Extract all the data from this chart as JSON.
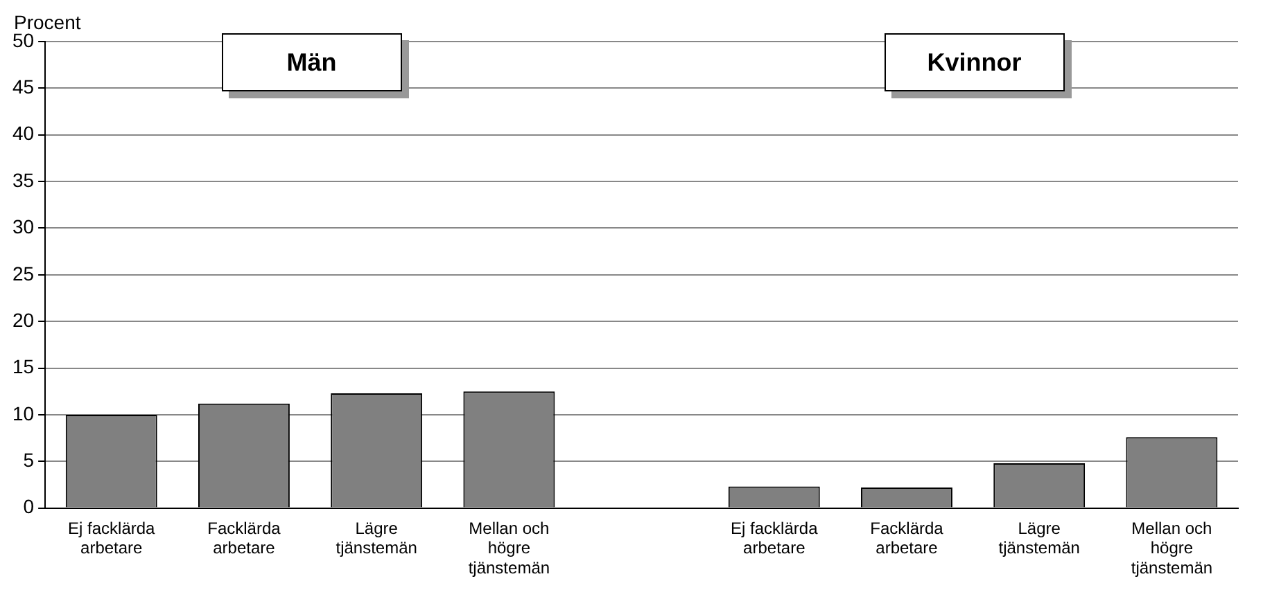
{
  "chart_data": {
    "type": "bar",
    "ylabel": "Procent",
    "categories": [
      "Ej facklärda arbetare",
      "Facklärda arbetare",
      "Lägre tjänstemän",
      "Mellan och högre tjänstemän",
      null,
      "Ej facklärda arbetare",
      "Facklärda arbetare",
      "Lägre tjänstemän",
      "Mellan och högre tjänstemän"
    ],
    "values": [
      10,
      11.2,
      12.3,
      12.5,
      null,
      2.3,
      2.2,
      4.8,
      7.6
    ],
    "color": "#808080",
    "ylim": [
      0,
      50
    ],
    "yticks": [
      0,
      5,
      10,
      15,
      20,
      25,
      30,
      35,
      40,
      45,
      50
    ],
    "annotations": [
      "Män",
      "Kvinnor"
    ],
    "grid": "y",
    "legend": false
  }
}
